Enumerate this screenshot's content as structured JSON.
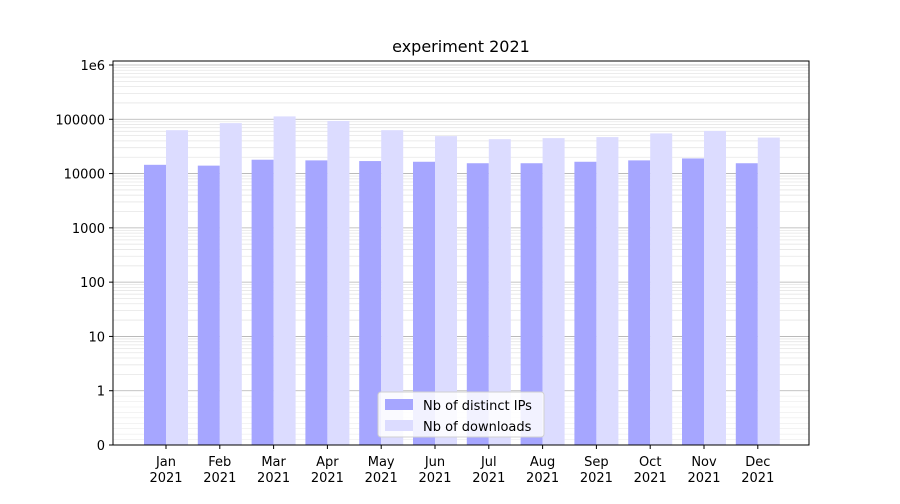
{
  "chart_data": {
    "type": "bar",
    "title": "experiment 2021",
    "xlabel": "",
    "ylabel": "",
    "yscale": "symlog",
    "ylim": [
      0,
      1000000
    ],
    "grid": true,
    "legend_position": "lower-center",
    "categories": [
      [
        "Jan",
        "2021"
      ],
      [
        "Feb",
        "2021"
      ],
      [
        "Mar",
        "2021"
      ],
      [
        "Apr",
        "2021"
      ],
      [
        "May",
        "2021"
      ],
      [
        "Jun",
        "2021"
      ],
      [
        "Jul",
        "2021"
      ],
      [
        "Aug",
        "2021"
      ],
      [
        "Sep",
        "2021"
      ],
      [
        "Oct",
        "2021"
      ],
      [
        "Nov",
        "2021"
      ],
      [
        "Dec",
        "2021"
      ]
    ],
    "y_ticks": [
      {
        "value": 0,
        "label": "0"
      },
      {
        "value": 1,
        "label": "1"
      },
      {
        "value": 10,
        "label": "10"
      },
      {
        "value": 100,
        "label": "100"
      },
      {
        "value": 1000,
        "label": "1000"
      },
      {
        "value": 10000,
        "label": "10000"
      },
      {
        "value": 100000,
        "label": "100000"
      },
      {
        "value": 1000000,
        "label": "1e6"
      }
    ],
    "series": [
      {
        "name": "Nb of distinct IPs",
        "color": "#a6a6ff",
        "values": [
          14500,
          14000,
          18000,
          17500,
          17000,
          16500,
          15500,
          15500,
          16500,
          17500,
          19000,
          15500
        ]
      },
      {
        "name": "Nb of downloads",
        "color": "#dcdcff",
        "values": [
          63000,
          85000,
          113000,
          93000,
          63000,
          49000,
          43000,
          45000,
          47000,
          55000,
          61000,
          46000
        ]
      }
    ]
  }
}
